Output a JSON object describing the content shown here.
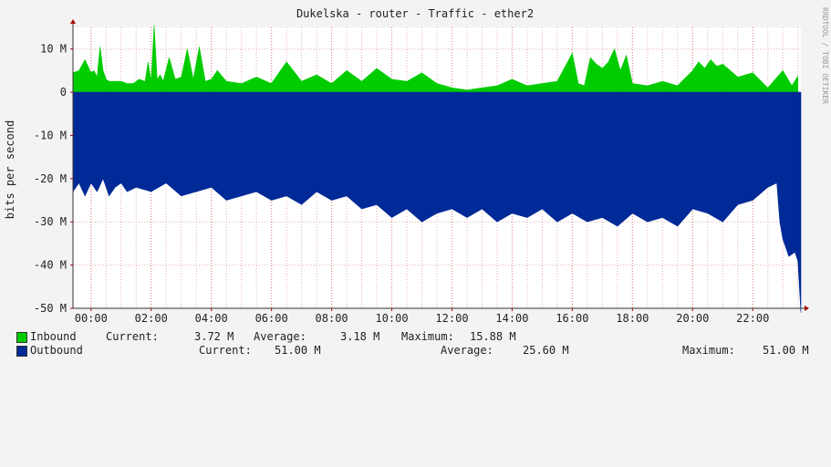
{
  "chart_data": {
    "type": "area",
    "title": "Dukelska - router - Traffic - ether2",
    "ylabel": "bits per second",
    "side_label": "RRDTOOL / TOBI OETIKER",
    "ylim": [
      -50000000,
      15000000
    ],
    "xlim_hours": [
      -0.6,
      23.6
    ],
    "y_ticks": [
      {
        "value": 10000000,
        "label": "10 M"
      },
      {
        "value": 0,
        "label": "0"
      },
      {
        "value": -10000000,
        "label": "-10 M"
      },
      {
        "value": -20000000,
        "label": "-20 M"
      },
      {
        "value": -30000000,
        "label": "-30 M"
      },
      {
        "value": -40000000,
        "label": "-40 M"
      },
      {
        "value": -50000000,
        "label": "-50 M"
      }
    ],
    "x_ticks": [
      {
        "value": 0,
        "label": "00:00"
      },
      {
        "value": 2,
        "label": "02:00"
      },
      {
        "value": 4,
        "label": "04:00"
      },
      {
        "value": 6,
        "label": "06:00"
      },
      {
        "value": 8,
        "label": "08:00"
      },
      {
        "value": 10,
        "label": "10:00"
      },
      {
        "value": 12,
        "label": "12:00"
      },
      {
        "value": 14,
        "label": "14:00"
      },
      {
        "value": 16,
        "label": "16:00"
      },
      {
        "value": 18,
        "label": "18:00"
      },
      {
        "value": 20,
        "label": "20:00"
      },
      {
        "value": 22,
        "label": "22:00"
      }
    ],
    "series": [
      {
        "name": "Inbound",
        "color": "#00cc00",
        "stats": {
          "current_label": "Current:",
          "current": "3.72 M",
          "average_label": "Average:",
          "average": "3.18 M",
          "maximum_label": "Maximum:",
          "maximum": "15.88 M"
        },
        "x": [
          -0.6,
          -0.4,
          -0.2,
          0.0,
          0.1,
          0.2,
          0.3,
          0.4,
          0.5,
          0.6,
          0.8,
          1.0,
          1.2,
          1.4,
          1.6,
          1.8,
          1.9,
          2.0,
          2.1,
          2.2,
          2.3,
          2.4,
          2.6,
          2.8,
          3.0,
          3.2,
          3.4,
          3.6,
          3.8,
          4.0,
          4.2,
          4.5,
          5.0,
          5.5,
          6.0,
          6.5,
          7.0,
          7.5,
          8.0,
          8.5,
          9.0,
          9.5,
          10.0,
          10.5,
          11.0,
          11.5,
          12.0,
          12.5,
          13.0,
          13.5,
          14.0,
          14.5,
          15.0,
          15.5,
          16.0,
          16.2,
          16.4,
          16.6,
          16.8,
          17.0,
          17.2,
          17.4,
          17.6,
          17.8,
          18.0,
          18.5,
          19.0,
          19.5,
          20.0,
          20.2,
          20.4,
          20.6,
          20.8,
          21.0,
          21.5,
          22.0,
          22.5,
          23.0,
          23.3,
          23.5
        ],
        "values": [
          4500000,
          5000000,
          7500000,
          4500000,
          5000000,
          3500000,
          10500000,
          5000000,
          3000000,
          2500000,
          2500000,
          2500000,
          2000000,
          2000000,
          3000000,
          2500000,
          7000000,
          2500000,
          15500000,
          3000000,
          4000000,
          2500000,
          8000000,
          3000000,
          3500000,
          10000000,
          3000000,
          10500000,
          2500000,
          3000000,
          5000000,
          2500000,
          2000000,
          3500000,
          2000000,
          7000000,
          2500000,
          4000000,
          2000000,
          5000000,
          2500000,
          5500000,
          3000000,
          2500000,
          4500000,
          2000000,
          1000000,
          500000,
          1000000,
          1500000,
          3000000,
          1500000,
          2000000,
          2500000,
          9000000,
          2000000,
          1500000,
          8000000,
          6500000,
          5500000,
          7000000,
          10000000,
          5000000,
          8500000,
          2000000,
          1500000,
          2500000,
          1500000,
          5000000,
          7000000,
          5500000,
          7500000,
          6000000,
          6500000,
          3500000,
          4500000,
          1000000,
          5000000,
          1500000,
          3700000
        ]
      },
      {
        "name": "Outbound",
        "color": "#002a97",
        "stats": {
          "current_label": "Current:",
          "current": "51.00 M",
          "average_label": "Average:",
          "average": "25.60 M",
          "maximum_label": "Maximum:",
          "maximum": "51.00 M"
        },
        "x": [
          -0.6,
          -0.4,
          -0.2,
          0.0,
          0.2,
          0.4,
          0.6,
          0.8,
          1.0,
          1.2,
          1.5,
          2.0,
          2.5,
          3.0,
          3.5,
          4.0,
          4.5,
          5.0,
          5.5,
          6.0,
          6.5,
          7.0,
          7.5,
          8.0,
          8.5,
          9.0,
          9.5,
          10.0,
          10.5,
          11.0,
          11.5,
          12.0,
          12.5,
          13.0,
          13.5,
          14.0,
          14.5,
          15.0,
          15.5,
          16.0,
          16.5,
          17.0,
          17.5,
          18.0,
          18.5,
          19.0,
          19.5,
          20.0,
          20.5,
          21.0,
          21.5,
          22.0,
          22.5,
          22.8,
          22.9,
          23.0,
          23.2,
          23.4,
          23.5,
          23.6
        ],
        "values": [
          -23000000,
          -21000000,
          -24000000,
          -21000000,
          -23000000,
          -20000000,
          -24000000,
          -22000000,
          -21000000,
          -23000000,
          -22000000,
          -23000000,
          -21000000,
          -24000000,
          -23000000,
          -22000000,
          -25000000,
          -24000000,
          -23000000,
          -25000000,
          -24000000,
          -26000000,
          -23000000,
          -25000000,
          -24000000,
          -27000000,
          -26000000,
          -29000000,
          -27000000,
          -30000000,
          -28000000,
          -27000000,
          -29000000,
          -27000000,
          -30000000,
          -28000000,
          -29000000,
          -27000000,
          -30000000,
          -28000000,
          -30000000,
          -29000000,
          -31000000,
          -28000000,
          -30000000,
          -29000000,
          -31000000,
          -27000000,
          -28000000,
          -30000000,
          -26000000,
          -25000000,
          -22000000,
          -21000000,
          -30000000,
          -34000000,
          -38000000,
          -37000000,
          -39000000,
          -51000000
        ]
      }
    ]
  }
}
